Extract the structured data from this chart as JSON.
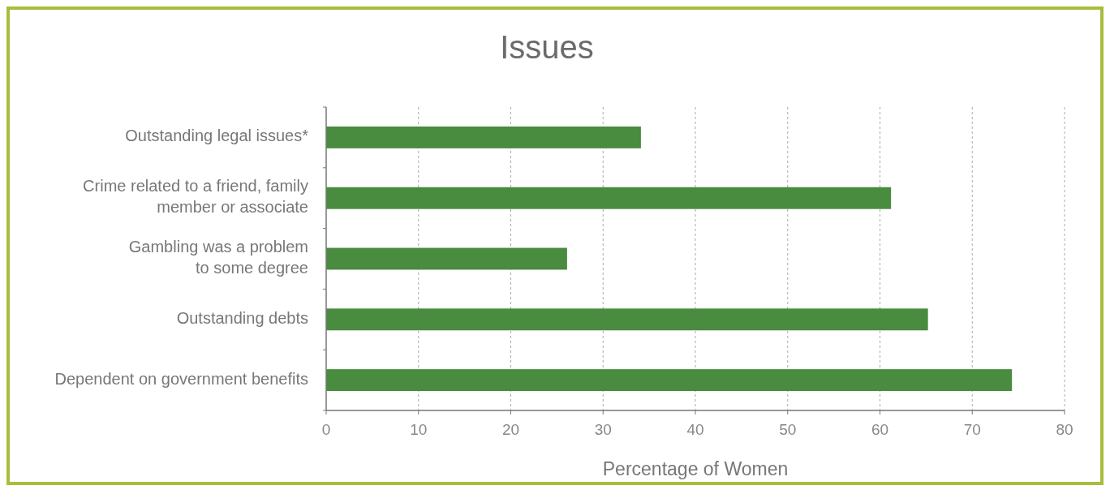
{
  "chart_data": {
    "type": "bar",
    "orientation": "horizontal",
    "title": "Issues",
    "xlabel": "Percentage of Women",
    "categories": [
      "Outstanding legal issues*",
      "Crime related to a friend, family\nmember or associate",
      "Gambling was a problem\nto some degree",
      "Outstanding debts",
      "Dependent on government benefits"
    ],
    "values": [
      34.1,
      61.2,
      26.1,
      65.2,
      74.3
    ],
    "color": "#498b3f",
    "xlim": [
      0,
      80
    ],
    "xticks": [
      0,
      10,
      20,
      30,
      40,
      50,
      60,
      70,
      80
    ],
    "grid": "x"
  }
}
